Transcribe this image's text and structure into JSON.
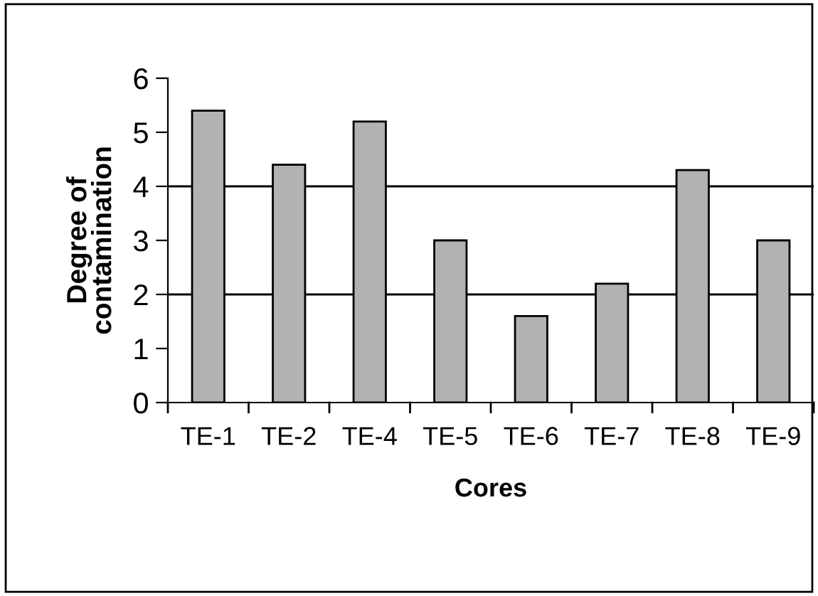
{
  "chart_data": {
    "type": "bar",
    "xlabel": "Cores",
    "ylabel": "Degree of\ncontamination",
    "categories": [
      "TE-1",
      "TE-2",
      "TE-4",
      "TE-5",
      "TE-6",
      "TE-7",
      "TE-8",
      "TE-9"
    ],
    "values": [
      5.4,
      4.4,
      5.2,
      3.0,
      1.6,
      2.2,
      4.3,
      3.0
    ],
    "color": "#b2b2b2",
    "ylim": [
      0,
      6
    ],
    "yticks": [
      0,
      1,
      2,
      3,
      4,
      5,
      6
    ],
    "grid": false,
    "ref_lines": [
      {
        "axis": "y",
        "value": 2,
        "color": "#000000"
      },
      {
        "axis": "y",
        "value": 4,
        "color": "#000000"
      }
    ]
  }
}
